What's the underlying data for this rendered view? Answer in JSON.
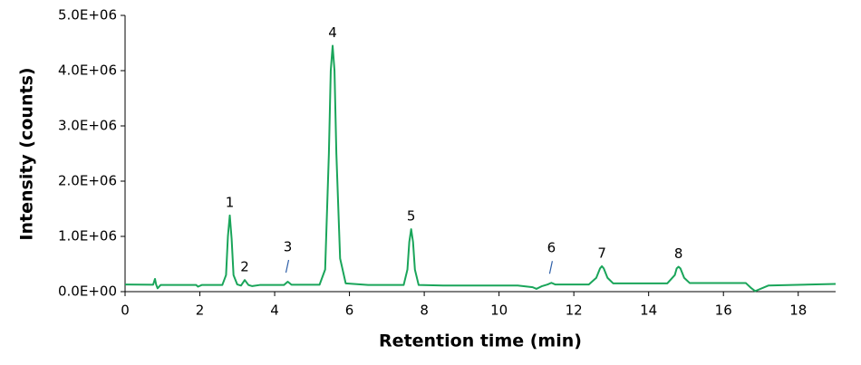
{
  "chart_data": {
    "type": "line",
    "xlabel": "Retention time (min)",
    "ylabel": "Intensity (counts)",
    "xlim": [
      0,
      19
    ],
    "xticks": [
      0,
      2,
      4,
      6,
      8,
      10,
      12,
      14,
      16,
      18
    ],
    "ylim": [
      0,
      5000000
    ],
    "yticks": [
      {
        "value": 0,
        "label": "0.0E+00"
      },
      {
        "value": 1000000,
        "label": "1.0E+06"
      },
      {
        "value": 2000000,
        "label": "2.0E+06"
      },
      {
        "value": 3000000,
        "label": "3.0E+06"
      },
      {
        "value": 4000000,
        "label": "4.0E+06"
      },
      {
        "value": 5000000,
        "label": "5.0E+06"
      }
    ],
    "grid": false,
    "series": [
      {
        "color": "#1aa55a",
        "x": [
          0,
          0.75,
          0.8,
          0.83,
          0.87,
          0.95,
          1.9,
          1.95,
          2.05,
          2.6,
          2.7,
          2.75,
          2.8,
          2.85,
          2.9,
          3.0,
          3.1,
          3.2,
          3.3,
          3.4,
          3.6,
          4.25,
          4.35,
          4.45,
          5.2,
          5.35,
          5.45,
          5.5,
          5.55,
          5.6,
          5.65,
          5.75,
          5.9,
          6.5,
          7.45,
          7.55,
          7.6,
          7.65,
          7.7,
          7.75,
          7.85,
          8.5,
          10.5,
          10.9,
          11.0,
          11.15,
          11.3,
          11.4,
          11.5,
          12.4,
          12.6,
          12.7,
          12.75,
          12.8,
          12.9,
          13.05,
          14.5,
          14.7,
          14.75,
          14.8,
          14.85,
          14.95,
          15.1,
          16.6,
          16.75,
          16.85,
          17.2,
          19
        ],
        "values": [
          130000,
          125000,
          230000,
          130000,
          60000,
          120000,
          120000,
          90000,
          120000,
          120000,
          300000,
          1000000,
          1380000,
          950000,
          300000,
          130000,
          110000,
          210000,
          120000,
          100000,
          120000,
          120000,
          180000,
          125000,
          125000,
          400000,
          2500000,
          4000000,
          4450000,
          4000000,
          2500000,
          600000,
          150000,
          120000,
          120000,
          400000,
          900000,
          1130000,
          900000,
          400000,
          120000,
          110000,
          110000,
          80000,
          50000,
          100000,
          130000,
          160000,
          130000,
          130000,
          250000,
          420000,
          460000,
          420000,
          250000,
          150000,
          150000,
          300000,
          420000,
          450000,
          420000,
          250000,
          155000,
          155000,
          60000,
          10000,
          110000,
          140000
        ]
      }
    ],
    "annotations": [
      {
        "text": "1",
        "x": 2.8
      },
      {
        "text": "2",
        "x": 3.2
      },
      {
        "text": "3",
        "x": 4.35
      },
      {
        "text": "4",
        "x": 5.55
      },
      {
        "text": "5",
        "x": 7.65
      },
      {
        "text": "6",
        "x": 11.4
      },
      {
        "text": "7",
        "x": 12.75
      },
      {
        "text": "8",
        "x": 14.8
      }
    ]
  }
}
